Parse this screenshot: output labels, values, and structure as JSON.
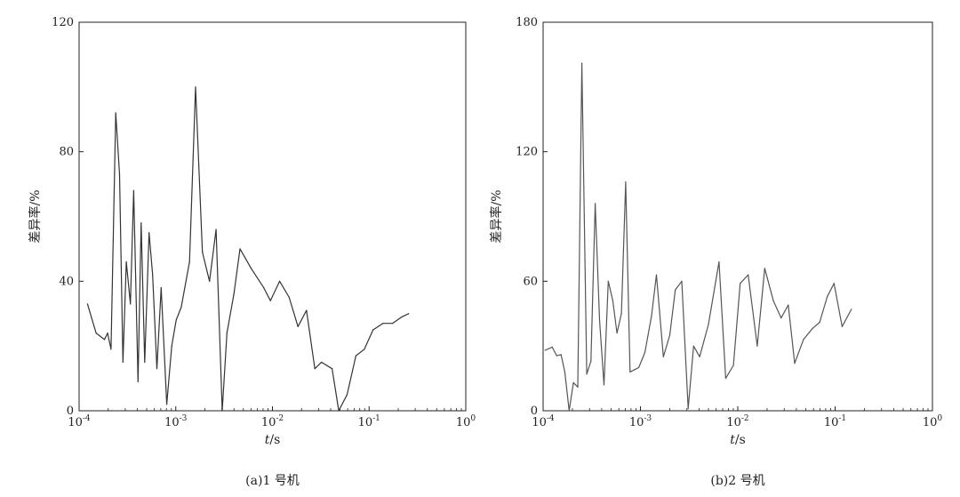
{
  "chart_data": [
    {
      "type": "line",
      "caption": "(a)1 号机",
      "xlabel": "t/s",
      "ylabel": "差异率/%",
      "xscale": "log",
      "xlim": [
        0.0001,
        1
      ],
      "ylim": [
        0,
        120
      ],
      "yticks": [
        "0",
        "40",
        "80",
        "120"
      ],
      "xticks": [
        {
          "base": "10",
          "exp": "-4"
        },
        {
          "base": "10",
          "exp": "-3"
        },
        {
          "base": "10",
          "exp": "-2"
        },
        {
          "base": "10",
          "exp": "-1"
        },
        {
          "base": "10",
          "exp": "0"
        }
      ],
      "grid": false,
      "series": [
        {
          "color": "#333333",
          "points": [
            [
              0.000122,
              33
            ],
            [
              0.00015,
              24
            ],
            [
              0.000183,
              22
            ],
            [
              0.000197,
              24
            ],
            [
              0.000214,
              19
            ],
            [
              0.000239,
              92
            ],
            [
              0.000262,
              73
            ],
            [
              0.000284,
              15
            ],
            [
              0.000308,
              46
            ],
            [
              0.000339,
              33
            ],
            [
              0.000367,
              68
            ],
            [
              0.000407,
              9
            ],
            [
              0.000438,
              58
            ],
            [
              0.000477,
              15
            ],
            [
              0.000529,
              55
            ],
            [
              0.000576,
              42
            ],
            [
              0.000637,
              13
            ],
            [
              0.000706,
              38
            ],
            [
              0.000807,
              2
            ],
            [
              0.000908,
              20
            ],
            [
              0.001009,
              28
            ],
            [
              0.00114,
              32
            ],
            [
              0.001388,
              46
            ],
            [
              0.001602,
              100
            ],
            [
              0.001886,
              49
            ],
            [
              0.002232,
              40
            ],
            [
              0.00261,
              56
            ],
            [
              0.00302,
              0
            ],
            [
              0.00338,
              24
            ],
            [
              0.00399,
              36
            ],
            [
              0.00462,
              50
            ],
            [
              0.00602,
              44
            ],
            [
              0.00812,
              38
            ],
            [
              0.00952,
              34
            ],
            [
              0.01186,
              40
            ],
            [
              0.0149,
              35
            ],
            [
              0.01837,
              26
            ],
            [
              0.02252,
              31
            ],
            [
              0.02747,
              13
            ],
            [
              0.03214,
              15
            ],
            [
              0.04141,
              13
            ],
            [
              0.0485,
              0
            ],
            [
              0.05916,
              5
            ],
            [
              0.07297,
              17
            ],
            [
              0.08929,
              19
            ],
            [
              0.10992,
              25
            ],
            [
              0.13895,
              27
            ],
            [
              0.17481,
              27
            ],
            [
              0.21825,
              29
            ],
            [
              0.25632,
              30
            ]
          ]
        }
      ]
    },
    {
      "type": "line",
      "caption": "(b)2 号机",
      "xlabel": "t/s",
      "ylabel": "差异率/%",
      "xscale": "log",
      "xlim": [
        0.0001,
        1
      ],
      "ylim": [
        0,
        180
      ],
      "yticks": [
        "0",
        "60",
        "120",
        "180"
      ],
      "xticks": [
        {
          "base": "10",
          "exp": "-4"
        },
        {
          "base": "10",
          "exp": "-3"
        },
        {
          "base": "10",
          "exp": "-2"
        },
        {
          "base": "10",
          "exp": "-1"
        },
        {
          "base": "10",
          "exp": "0"
        }
      ],
      "grid": false,
      "series": [
        {
          "color": "#555555",
          "points": [
            [
              0.000105,
              28
            ],
            [
              0.000124,
              29.5
            ],
            [
              0.000138,
              25.5
            ],
            [
              0.000153,
              26
            ],
            [
              0.000167,
              18
            ],
            [
              0.000185,
              0
            ],
            [
              0.000205,
              13
            ],
            [
              0.000227,
              11
            ],
            [
              0.00025,
              161
            ],
            [
              0.000281,
              17
            ],
            [
              0.00031,
              23
            ],
            [
              0.000343,
              96
            ],
            [
              0.00038,
              42
            ],
            [
              0.000422,
              12
            ],
            [
              0.000467,
              60
            ],
            [
              0.00052,
              51
            ],
            [
              0.000574,
              36
            ],
            [
              0.000638,
              45
            ],
            [
              0.000705,
              106
            ],
            [
              0.000782,
              18
            ],
            [
              0.000866,
              19
            ],
            [
              0.00096,
              20
            ],
            [
              0.00111,
              27
            ],
            [
              0.0013,
              44
            ],
            [
              0.00146,
              63
            ],
            [
              0.00172,
              25
            ],
            [
              0.002,
              35
            ],
            [
              0.00228,
              56
            ],
            [
              0.00266,
              60
            ],
            [
              0.00309,
              1
            ],
            [
              0.00352,
              30
            ],
            [
              0.00406,
              25
            ],
            [
              0.005,
              40
            ],
            [
              0.00642,
              69
            ],
            [
              0.00752,
              15
            ],
            [
              0.00903,
              21
            ],
            [
              0.01058,
              59
            ],
            [
              0.01279,
              63
            ],
            [
              0.01585,
              30
            ],
            [
              0.01893,
              66
            ],
            [
              0.02319,
              51
            ],
            [
              0.02792,
              43
            ],
            [
              0.03302,
              49
            ],
            [
              0.03839,
              22
            ],
            [
              0.04727,
              33
            ],
            [
              0.0583,
              38
            ],
            [
              0.06935,
              41
            ],
            [
              0.08335,
              53
            ],
            [
              0.09745,
              59
            ],
            [
              0.11797,
              39
            ],
            [
              0.14703,
              47
            ]
          ]
        }
      ]
    }
  ]
}
